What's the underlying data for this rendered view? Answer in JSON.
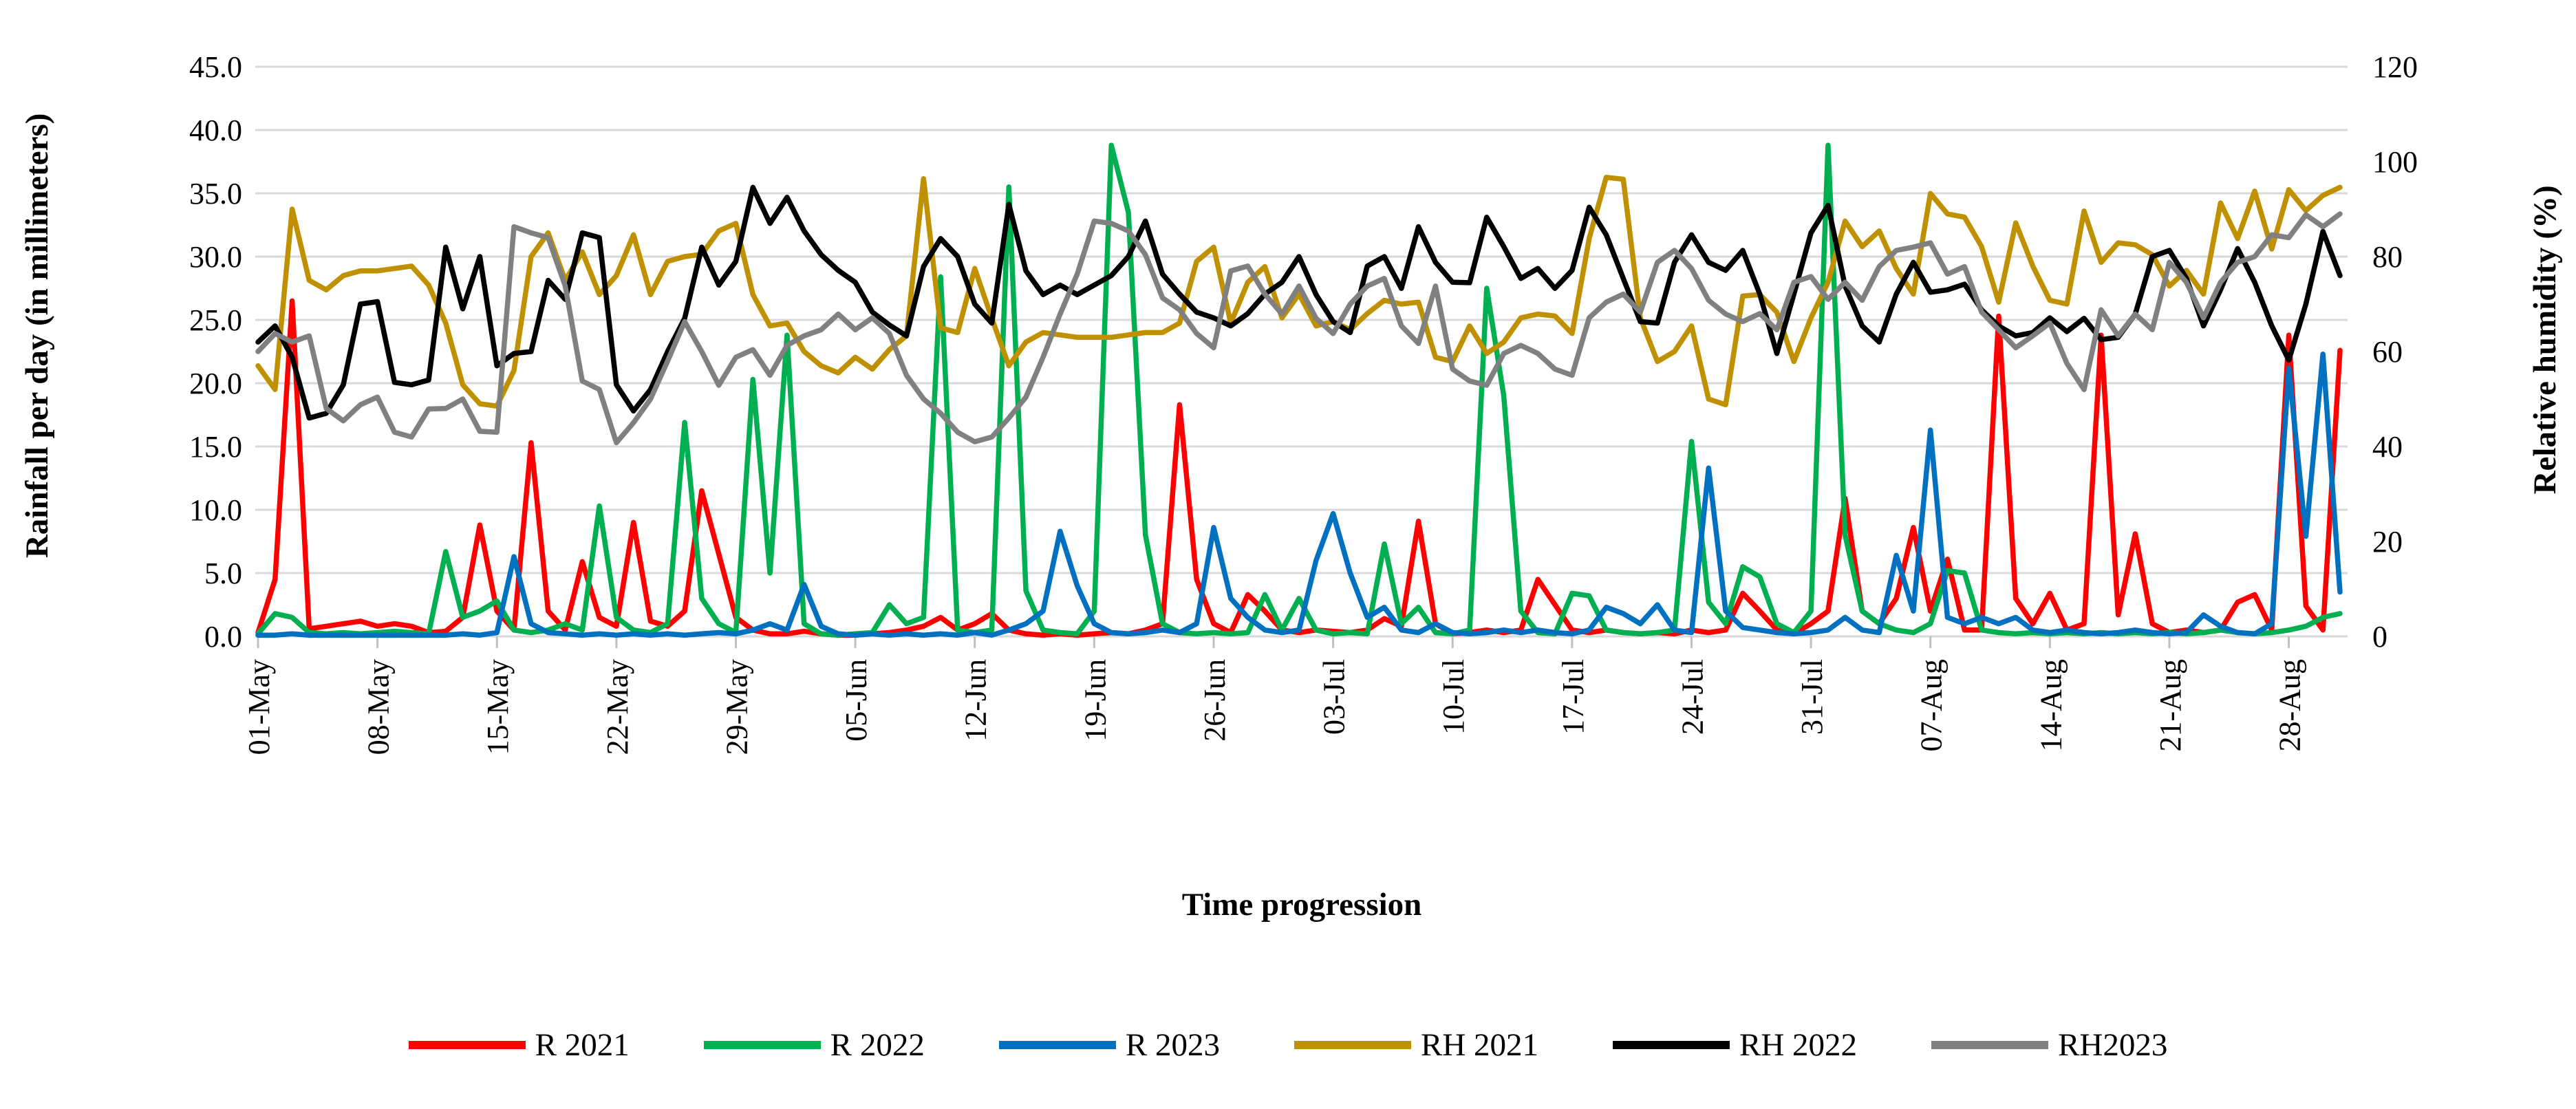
{
  "chart_data": {
    "type": "line",
    "title": "",
    "xlabel": "Time progression",
    "ylabel_left": "Rainfall per day (in millimeters)",
    "ylabel_right": "Relative humidity (%)",
    "grid": true,
    "legend_position": "bottom",
    "ylim_left": [
      0,
      45
    ],
    "ylim_right": [
      0,
      120
    ],
    "y_ticks_left": [
      "0.0",
      "5.0",
      "10.0",
      "15.0",
      "20.0",
      "25.0",
      "30.0",
      "35.0",
      "40.0",
      "45.0"
    ],
    "y_ticks_right": [
      "0",
      "20",
      "40",
      "60",
      "80",
      "100",
      "120"
    ],
    "x_tick_interval_days": 7,
    "x_tick_labels": [
      "01-May",
      "08-May",
      "15-May",
      "22-May",
      "29-May",
      "05-Jun",
      "12-Jun",
      "19-Jun",
      "26-Jun",
      "03-Jul",
      "10-Jul",
      "17-Jul",
      "24-Jul",
      "31-Jul",
      "07-Aug",
      "14-Aug",
      "21-Aug",
      "28-Aug"
    ],
    "colors": {
      "gridline": "#D9D9D9",
      "tick": "#BFBFBF",
      "text": "#000000"
    },
    "series": [
      {
        "name": "R 2021",
        "axis": "left",
        "color": "#FF0000",
        "values": [
          0.3,
          4.5,
          26.5,
          0.6,
          0.8,
          1.0,
          1.2,
          0.8,
          1.0,
          0.8,
          0.3,
          0.4,
          1.5,
          8.8,
          2.0,
          0.5,
          15.3,
          2.0,
          0.5,
          5.9,
          1.5,
          0.8,
          9.0,
          1.2,
          0.8,
          2.0,
          11.5,
          6.5,
          1.5,
          0.5,
          0.2,
          0.2,
          0.4,
          0.2,
          0.1,
          0.1,
          0.2,
          0.3,
          0.5,
          0.8,
          1.5,
          0.5,
          1.0,
          1.8,
          0.5,
          0.2,
          0.1,
          0.2,
          0.1,
          0.2,
          0.3,
          0.2,
          0.5,
          1.0,
          18.3,
          4.5,
          1.0,
          0.3,
          3.3,
          2.0,
          0.5,
          0.3,
          0.5,
          0.4,
          0.3,
          0.5,
          1.4,
          0.8,
          9.1,
          1.0,
          0.2,
          0.3,
          0.5,
          0.3,
          0.5,
          4.5,
          2.5,
          0.5,
          0.3,
          0.5,
          0.3,
          0.2,
          0.3,
          0.2,
          0.5,
          0.3,
          0.5,
          3.4,
          2.0,
          0.5,
          0.2,
          1.0,
          2.0,
          10.9,
          2.0,
          1.0,
          3.0,
          8.6,
          2.0,
          6.1,
          0.5,
          0.5,
          25.3,
          3.0,
          1.0,
          3.4,
          0.5,
          1.0,
          23.8,
          1.7,
          8.1,
          1.0,
          0.3,
          0.5,
          0.3,
          0.5,
          2.7,
          3.3,
          0.5,
          23.8,
          2.4,
          0.5,
          22.6
        ]
      },
      {
        "name": "R 2022",
        "axis": "left",
        "color": "#00B050",
        "values": [
          0.2,
          1.8,
          1.5,
          0.3,
          0.2,
          0.3,
          0.2,
          0.3,
          0.4,
          0.3,
          0.2,
          6.7,
          1.5,
          2.0,
          2.8,
          0.5,
          0.3,
          0.5,
          1.0,
          0.5,
          10.3,
          1.5,
          0.5,
          0.3,
          1.0,
          16.9,
          3.0,
          1.0,
          0.3,
          20.3,
          5.0,
          23.8,
          1.0,
          0.2,
          0.1,
          0.2,
          0.3,
          2.5,
          1.0,
          1.5,
          28.4,
          0.5,
          0.3,
          0.5,
          35.5,
          3.6,
          0.5,
          0.3,
          0.2,
          2.0,
          38.8,
          33.5,
          8.0,
          1.0,
          0.3,
          0.2,
          0.3,
          0.2,
          0.3,
          3.3,
          0.5,
          3.0,
          0.5,
          0.2,
          0.3,
          0.2,
          7.3,
          1.0,
          2.3,
          0.3,
          0.2,
          0.5,
          27.5,
          19.0,
          2.0,
          0.3,
          0.2,
          3.4,
          3.2,
          0.5,
          0.3,
          0.2,
          0.3,
          0.5,
          15.4,
          2.7,
          1.0,
          5.5,
          4.7,
          1.0,
          0.3,
          2.0,
          38.8,
          8.0,
          2.0,
          1.0,
          0.5,
          0.3,
          1.0,
          5.2,
          5.0,
          0.5,
          0.3,
          0.2,
          0.3,
          0.2,
          0.3,
          0.2,
          0.3,
          0.2,
          0.3,
          0.2,
          0.3,
          0.2,
          0.3,
          0.5,
          0.3,
          0.2,
          0.3,
          0.5,
          0.8,
          1.5,
          1.8
        ]
      },
      {
        "name": "R 2023",
        "axis": "left",
        "color": "#0070C0",
        "values": [
          0.1,
          0.1,
          0.2,
          0.1,
          0.1,
          0.1,
          0.1,
          0.1,
          0.1,
          0.1,
          0.1,
          0.1,
          0.2,
          0.1,
          0.3,
          6.3,
          1.0,
          0.3,
          0.2,
          0.1,
          0.2,
          0.1,
          0.2,
          0.1,
          0.2,
          0.1,
          0.2,
          0.3,
          0.2,
          0.5,
          1.0,
          0.5,
          4.1,
          0.8,
          0.2,
          0.1,
          0.2,
          0.1,
          0.2,
          0.1,
          0.2,
          0.1,
          0.3,
          0.1,
          0.5,
          1.0,
          2.0,
          8.3,
          4.0,
          1.0,
          0.3,
          0.2,
          0.3,
          0.5,
          0.3,
          1.0,
          8.6,
          3.0,
          1.5,
          0.5,
          0.3,
          0.5,
          6.0,
          9.7,
          5.0,
          1.5,
          2.3,
          0.5,
          0.3,
          1.0,
          0.3,
          0.2,
          0.3,
          0.5,
          0.3,
          0.5,
          0.3,
          0.2,
          0.5,
          2.3,
          1.8,
          1.0,
          2.5,
          0.5,
          0.3,
          13.3,
          2.0,
          0.7,
          0.5,
          0.3,
          0.2,
          0.3,
          0.5,
          1.5,
          0.5,
          0.3,
          6.4,
          2.0,
          16.3,
          1.5,
          1.0,
          1.5,
          1.0,
          1.5,
          0.5,
          0.3,
          0.5,
          0.3,
          0.2,
          0.3,
          0.5,
          0.3,
          0.2,
          0.3,
          1.7,
          0.8,
          0.3,
          0.2,
          1.0,
          21.2,
          7.9,
          22.3,
          3.5
        ]
      },
      {
        "name": "RH 2021",
        "axis": "right",
        "color": "#BF9000",
        "values": [
          57,
          52,
          90,
          75,
          73,
          76,
          77,
          77,
          77.5,
          78,
          74,
          66,
          53,
          49,
          48.5,
          56,
          80,
          85,
          75,
          81,
          72,
          76,
          84.6,
          72,
          79,
          80,
          80.5,
          85.4,
          87,
          72,
          65.4,
          66,
          60,
          57,
          55.5,
          58.8,
          56.3,
          60.4,
          63.3,
          96.4,
          65,
          64,
          77.5,
          67,
          57,
          62,
          64,
          63.5,
          63,
          63,
          63,
          63.5,
          64,
          64,
          66,
          79,
          82,
          66,
          74.6,
          77.9,
          67.1,
          72.1,
          65.4,
          66.3,
          64.6,
          68,
          70.8,
          70,
          70.4,
          58.8,
          57.9,
          65.4,
          59.6,
          62,
          67.1,
          67.9,
          67.5,
          63.8,
          83.8,
          96.7,
          96.3,
          67.1,
          57.9,
          60,
          65.4,
          50,
          48.8,
          71.7,
          72,
          68.3,
          57.9,
          67.1,
          74.6,
          87.5,
          82.1,
          85.4,
          77.5,
          72.1,
          93.3,
          89,
          88.3,
          82.1,
          70.4,
          87.1,
          78,
          70.8,
          70,
          89.6,
          78.8,
          82.9,
          82.5,
          80.4,
          73.8,
          77.1,
          72.1,
          91.3,
          83.8,
          93.8,
          81.6,
          94.1,
          89.7,
          92.9,
          94.6
        ]
      },
      {
        "name": "RH 2022",
        "axis": "right",
        "color": "#000000",
        "values": [
          62,
          65.4,
          58.8,
          46,
          47,
          53,
          70,
          70.5,
          53.5,
          53,
          54,
          82,
          69,
          80,
          57,
          59.6,
          60,
          75,
          71,
          85,
          84,
          53,
          47.5,
          52,
          60,
          67,
          82,
          74,
          79,
          94.6,
          87,
          92.5,
          85.4,
          80.4,
          77.1,
          74.6,
          68.3,
          65.6,
          63.3,
          77.9,
          83.8,
          80,
          70,
          66,
          91,
          77,
          72,
          74,
          72,
          74,
          76,
          80,
          87.5,
          76.3,
          72.1,
          68.3,
          67.1,
          65.4,
          68,
          72.1,
          74.6,
          80,
          72,
          66.3,
          64,
          78,
          80,
          73.3,
          86.3,
          78.8,
          74.6,
          74.5,
          88.3,
          82.1,
          75.4,
          77.5,
          73.3,
          77.1,
          90.4,
          84.6,
          75.4,
          66.3,
          66,
          78.8,
          84.6,
          78.8,
          77.1,
          81.3,
          72.1,
          59.6,
          72.1,
          85,
          90.8,
          73.8,
          65.4,
          62,
          72.1,
          78.8,
          72.5,
          73,
          74.2,
          68.8,
          65.4,
          63.3,
          64,
          67.1,
          64.2,
          67,
          62.5,
          63,
          67.9,
          80,
          81.3,
          75.4,
          65.4,
          73,
          81.7,
          74.6,
          65.4,
          58.2,
          70,
          85.3,
          76
        ]
      },
      {
        "name": "RH2023",
        "axis": "right",
        "color": "#808080",
        "values": [
          60,
          63.8,
          62,
          63.3,
          48,
          45.4,
          48.8,
          50.4,
          43,
          42,
          47.9,
          48,
          50,
          43.2,
          43,
          86.3,
          85,
          84,
          73.8,
          53.8,
          52,
          40.8,
          45,
          50,
          58,
          66.3,
          60,
          52.9,
          58.8,
          60.4,
          55,
          61.3,
          63.3,
          64.6,
          67.9,
          64.6,
          67.1,
          63.8,
          55,
          50,
          47,
          43,
          41,
          42,
          46,
          50.4,
          58.8,
          67.9,
          76.3,
          87.5,
          87,
          85.4,
          80.4,
          71.3,
          68.8,
          63.8,
          60.8,
          77,
          78,
          72.1,
          67.9,
          73.8,
          67,
          63.8,
          70,
          73.8,
          75.4,
          65.4,
          61.7,
          73.8,
          56.3,
          53.8,
          52.9,
          59.6,
          61.3,
          59.6,
          56.3,
          55,
          67.1,
          70.4,
          72.1,
          68.3,
          78.8,
          81.3,
          77.5,
          70.8,
          67.9,
          66.3,
          68,
          64.6,
          74.6,
          75.8,
          71,
          74.6,
          70.8,
          77.9,
          81.3,
          82,
          82.9,
          76.3,
          77.9,
          68.3,
          64.6,
          60.8,
          63.3,
          66,
          57.5,
          52,
          68.8,
          63.3,
          67.9,
          64.6,
          78.8,
          74.6,
          67.1,
          74.6,
          78.8,
          80,
          84.6,
          84,
          88.8,
          86.3,
          89
        ]
      }
    ]
  }
}
